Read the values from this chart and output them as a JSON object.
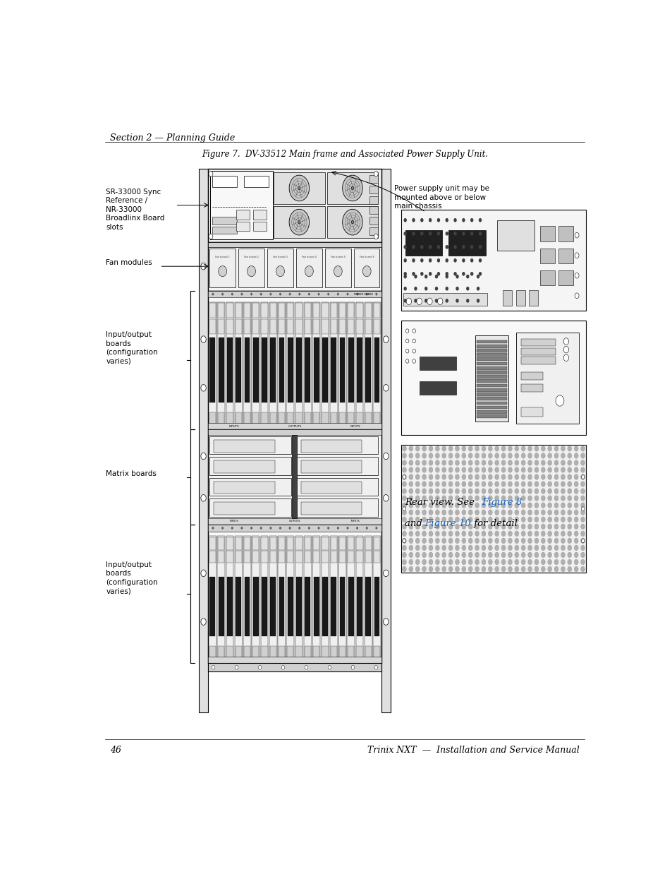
{
  "bg_color": "#ffffff",
  "page_width": 9.54,
  "page_height": 12.35,
  "header_text": "Section 2 — Planning Guide",
  "footer_page": "46",
  "footer_right": "Trinix NXT  —  Installation and Service Manual",
  "figure_caption": "Figure 7.  DV-33512 Main frame and Associated Power Supply Unit.",
  "label_sr": "SR-33000 Sync\nReference /\nNR-33000\nBroadlinx Board\nslots",
  "label_fan": "Fan modules",
  "label_io_top": "Input/output\nboards\n(configuration\nvaries)",
  "label_matrix": "Matrix boards",
  "label_io_bot": "Input/output\nboards\n(configuration\nvaries)",
  "label_psu": "Power supply unit may be\nmounted above or below\nmain chassis",
  "CL": 0.238,
  "CR": 0.57,
  "CT": 0.905,
  "CB": 0.095
}
